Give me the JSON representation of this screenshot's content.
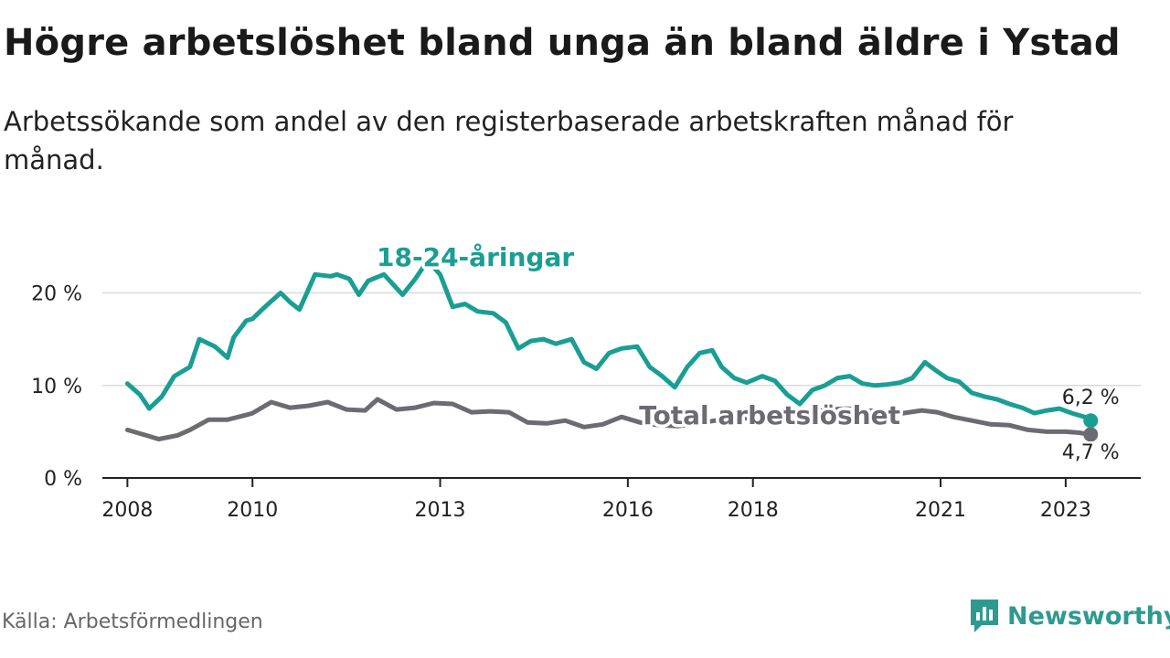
{
  "header": {
    "title": "Högre arbetslöshet bland unga än bland äldre i Ystad",
    "subtitle": "Arbetssökande som andel av den registerbaserade arbetskraften månad för månad."
  },
  "footer": {
    "source": "Källa: Arbetsförmedlingen",
    "brand": "Newsworthy"
  },
  "colors": {
    "youth": "#1a9e93",
    "total": "#6e6a72",
    "grid": "#d9d9d9",
    "axis": "#222222",
    "brand": "#2e9a8f"
  },
  "chart_data": {
    "type": "line",
    "title": "Högre arbetslöshet bland unga än bland äldre i Ystad",
    "xlabel": "",
    "ylabel": "",
    "ylim": [
      0,
      24
    ],
    "xlim": [
      2007.6,
      2024.2
    ],
    "y_ticks": [
      0,
      10,
      20
    ],
    "y_tick_labels": [
      "0 %",
      "10 %",
      "20 %"
    ],
    "x_ticks": [
      2008,
      2010,
      2013,
      2016,
      2018,
      2021,
      2023
    ],
    "x_tick_labels": [
      "2008",
      "2010",
      "2013",
      "2016",
      "2018",
      "2021",
      "2023"
    ],
    "grid": true,
    "series": [
      {
        "name": "18-24-åringar",
        "label": "18-24-åringar",
        "end_label": "6,2 %",
        "x": [
          2008.0,
          2008.2,
          2008.35,
          2008.55,
          2008.75,
          2009.0,
          2009.15,
          2009.4,
          2009.6,
          2009.7,
          2009.9,
          2010.0,
          2010.2,
          2010.45,
          2010.6,
          2010.75,
          2011.0,
          2011.25,
          2011.35,
          2011.55,
          2011.7,
          2011.85,
          2012.1,
          2012.4,
          2012.6,
          2012.8,
          2013.0,
          2013.2,
          2013.4,
          2013.6,
          2013.85,
          2014.05,
          2014.25,
          2014.45,
          2014.65,
          2014.85,
          2015.1,
          2015.3,
          2015.5,
          2015.7,
          2015.9,
          2016.15,
          2016.35,
          2016.55,
          2016.75,
          2016.95,
          2017.15,
          2017.35,
          2017.5,
          2017.7,
          2017.9,
          2018.15,
          2018.35,
          2018.55,
          2018.75,
          2018.95,
          2019.15,
          2019.35,
          2019.55,
          2019.75,
          2019.95,
          2020.15,
          2020.35,
          2020.55,
          2020.75,
          2020.95,
          2021.1,
          2021.3,
          2021.5,
          2021.7,
          2021.9,
          2022.1,
          2022.3,
          2022.5,
          2022.7,
          2022.9,
          2023.1,
          2023.3,
          2023.4
        ],
        "values": [
          10.2,
          9.0,
          7.5,
          8.8,
          11.0,
          12.0,
          15.0,
          14.2,
          13.0,
          15.2,
          17.0,
          17.2,
          18.5,
          20.0,
          19.0,
          18.2,
          22.0,
          21.8,
          22.0,
          21.5,
          19.8,
          21.3,
          22.0,
          19.8,
          21.5,
          23.5,
          22.0,
          18.5,
          18.8,
          18.0,
          17.8,
          16.8,
          14.0,
          14.8,
          15.0,
          14.5,
          15.0,
          12.5,
          11.8,
          13.5,
          14.0,
          14.2,
          12.0,
          11.0,
          9.8,
          12.0,
          13.5,
          13.8,
          12.0,
          10.8,
          10.3,
          11.0,
          10.5,
          9.0,
          8.0,
          9.5,
          10.0,
          10.8,
          11.0,
          10.2,
          10.0,
          10.1,
          10.3,
          10.8,
          12.5,
          11.5,
          10.8,
          10.4,
          9.2,
          8.8,
          8.5,
          8.0,
          7.6,
          7.0,
          7.3,
          7.5,
          7.0,
          6.6,
          6.2
        ]
      },
      {
        "name": "Total arbetslöshet",
        "label": "Total arbetslöshet",
        "end_label": "4,7 %",
        "x": [
          2008.0,
          2008.3,
          2008.5,
          2008.8,
          2009.0,
          2009.3,
          2009.6,
          2009.9,
          2010.0,
          2010.3,
          2010.6,
          2010.9,
          2011.2,
          2011.5,
          2011.8,
          2012.0,
          2012.3,
          2012.6,
          2012.9,
          2013.2,
          2013.5,
          2013.8,
          2014.1,
          2014.4,
          2014.7,
          2015.0,
          2015.3,
          2015.6,
          2015.9,
          2016.2,
          2016.5,
          2016.8,
          2017.1,
          2017.4,
          2017.7,
          2018.0,
          2018.3,
          2018.6,
          2018.9,
          2019.2,
          2019.5,
          2019.8,
          2020.1,
          2020.4,
          2020.7,
          2020.95,
          2021.2,
          2021.5,
          2021.8,
          2022.1,
          2022.4,
          2022.7,
          2023.0,
          2023.2,
          2023.4
        ],
        "values": [
          5.2,
          4.6,
          4.2,
          4.6,
          5.2,
          6.3,
          6.3,
          6.8,
          7.0,
          8.2,
          7.6,
          7.8,
          8.2,
          7.4,
          7.3,
          8.5,
          7.4,
          7.6,
          8.1,
          8.0,
          7.1,
          7.2,
          7.1,
          6.0,
          5.9,
          6.2,
          5.5,
          5.8,
          6.6,
          6.0,
          5.7,
          5.6,
          5.9,
          6.2,
          6.4,
          6.5,
          6.8,
          7.0,
          7.2,
          7.4,
          7.5,
          7.3,
          7.2,
          7.0,
          7.3,
          7.1,
          6.6,
          6.2,
          5.8,
          5.7,
          5.2,
          5.0,
          5.0,
          4.9,
          4.7
        ]
      }
    ]
  }
}
